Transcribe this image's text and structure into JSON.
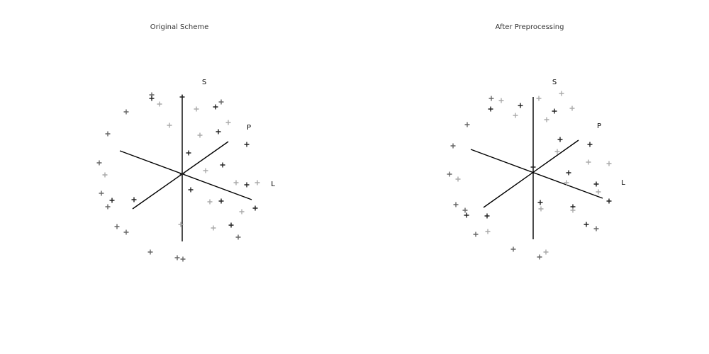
{
  "panels": [
    {
      "title": "Original Scheme",
      "axis_labels": {
        "s": "S",
        "p": "P",
        "l": "L"
      },
      "colors": {
        "axis": "#000000",
        "marker_dark": "#222222",
        "marker_mid": "#666666",
        "marker_light": "#aaaaaa"
      },
      "markers": "plus-markers"
    },
    {
      "title": "After Preprocessing",
      "axis_labels": {
        "s": "S",
        "p": "P",
        "l": "L"
      },
      "colors": {
        "axis": "#000000",
        "marker_dark": "#222222",
        "marker_mid": "#666666",
        "marker_light": "#aaaaaa"
      },
      "markers": "plus-markers"
    }
  ]
}
